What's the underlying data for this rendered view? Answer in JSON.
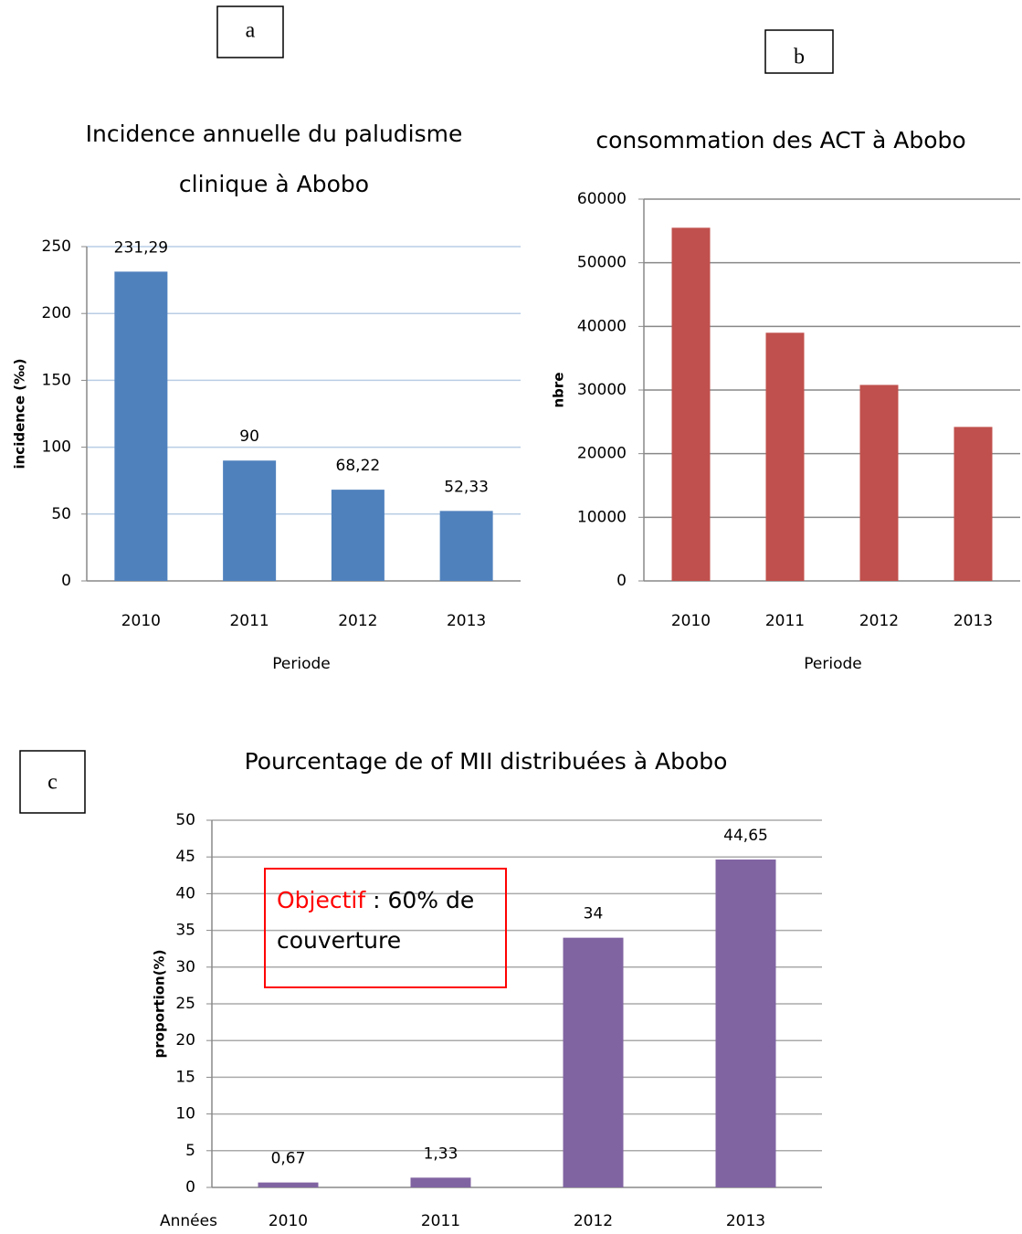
{
  "chart_data": [
    {
      "type": "bar",
      "panel": "a",
      "title": [
        "Incidence annuelle du paludisme",
        "clinique à Abobo"
      ],
      "xlabel": "Periode",
      "ylabel": "incidence (‰)",
      "categories": [
        "2010",
        "2011",
        "2012",
        "2013"
      ],
      "values": [
        231.29,
        90,
        68.22,
        52.33
      ],
      "value_labels": [
        "231,29",
        "90",
        "68,22",
        "52,33"
      ],
      "color": "#4f81bd",
      "ylim": [
        0,
        250
      ],
      "yticks": [
        0,
        50,
        100,
        150,
        200,
        250
      ],
      "grid": true,
      "grid_color": "#b9cde5"
    },
    {
      "type": "bar",
      "panel": "b",
      "title": "consommation  des ACT à Abobo",
      "xlabel": "Periode",
      "ylabel": "nbre",
      "categories": [
        "2010",
        "2011",
        "2012",
        "2013"
      ],
      "values": [
        55500,
        39000,
        30800,
        24200
      ],
      "color": "#c0504d",
      "ylim": [
        0,
        60000
      ],
      "yticks": [
        0,
        10000,
        20000,
        30000,
        40000,
        50000,
        60000
      ],
      "grid": true,
      "grid_color": "#888888"
    },
    {
      "type": "bar",
      "panel": "c",
      "title": "Pourcentage de of MII distribuées à Abobo",
      "xlabel": "Années",
      "ylabel": "proportion(%)",
      "categories": [
        "2010",
        "2011",
        "2012",
        "2013"
      ],
      "values": [
        0.67,
        1.33,
        34,
        44.65
      ],
      "value_labels": [
        "0,67",
        "1,33",
        "34",
        "44,65"
      ],
      "color": "#8064a2",
      "ylim": [
        0,
        50
      ],
      "yticks": [
        0,
        5,
        10,
        15,
        20,
        25,
        30,
        35,
        40,
        45,
        50
      ],
      "grid": true,
      "grid_color": "#aaaaaa",
      "annotation": {
        "highlight": "Objectif",
        "text": ": 60% de couverture",
        "color": "#ff0000"
      }
    }
  ]
}
